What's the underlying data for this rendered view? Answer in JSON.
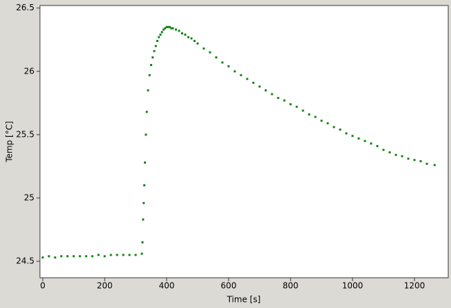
{
  "chart_data": {
    "type": "scatter",
    "xlabel": "Time [s]",
    "ylabel": "Temp [°C]",
    "color": "#138013",
    "xlim": [
      -9,
      1309
    ],
    "ylim": [
      24.37,
      26.52
    ],
    "xticks": [
      0,
      200,
      400,
      600,
      800,
      1000,
      1200
    ],
    "yticks": [
      24.5,
      25,
      25.5,
      26,
      26.5
    ],
    "x": [
      0,
      20,
      40,
      60,
      80,
      100,
      120,
      140,
      160,
      180,
      200,
      220,
      240,
      260,
      280,
      300,
      320,
      322,
      324,
      326,
      328,
      330,
      333,
      336,
      340,
      345,
      350,
      355,
      360,
      365,
      370,
      375,
      380,
      385,
      390,
      395,
      400,
      405,
      410,
      415,
      420,
      430,
      440,
      450,
      460,
      470,
      480,
      490,
      500,
      520,
      540,
      560,
      580,
      600,
      620,
      640,
      660,
      680,
      700,
      720,
      740,
      760,
      780,
      800,
      820,
      840,
      860,
      880,
      900,
      920,
      940,
      960,
      980,
      1000,
      1020,
      1040,
      1060,
      1080,
      1100,
      1120,
      1140,
      1160,
      1180,
      1200,
      1220,
      1240,
      1265
    ],
    "values": [
      24.53,
      24.54,
      24.53,
      24.54,
      24.54,
      24.54,
      24.54,
      24.54,
      24.54,
      24.55,
      24.54,
      24.55,
      24.55,
      24.55,
      24.55,
      24.55,
      24.56,
      24.65,
      24.83,
      24.96,
      25.1,
      25.28,
      25.5,
      25.68,
      25.85,
      25.97,
      26.05,
      26.11,
      26.16,
      26.2,
      26.24,
      26.27,
      26.29,
      26.31,
      26.33,
      26.34,
      26.35,
      26.35,
      26.35,
      26.34,
      26.34,
      26.33,
      26.32,
      26.3,
      26.29,
      26.27,
      26.26,
      26.24,
      26.22,
      26.18,
      26.15,
      26.11,
      26.07,
      26.04,
      26.0,
      25.97,
      25.94,
      25.91,
      25.88,
      25.85,
      25.82,
      25.79,
      25.77,
      25.74,
      25.72,
      25.69,
      25.66,
      25.64,
      25.61,
      25.59,
      25.56,
      25.54,
      25.51,
      25.49,
      25.47,
      25.45,
      25.43,
      25.41,
      25.38,
      25.36,
      25.34,
      25.33,
      25.31,
      25.3,
      25.29,
      25.27,
      25.26
    ]
  }
}
